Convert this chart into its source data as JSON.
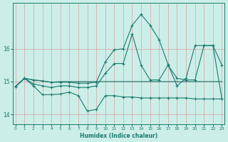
{
  "x": [
    0,
    1,
    2,
    3,
    4,
    5,
    6,
    7,
    8,
    9,
    10,
    11,
    12,
    13,
    14,
    15,
    16,
    17,
    18,
    19,
    20,
    21,
    22,
    23
  ],
  "line1": [
    14.85,
    15.1,
    14.93,
    14.87,
    14.82,
    14.87,
    14.87,
    14.82,
    14.82,
    14.87,
    15.25,
    15.55,
    15.55,
    16.45,
    15.5,
    15.05,
    15.05,
    15.5,
    15.1,
    15.05,
    15.05,
    16.1,
    16.1,
    15.5
  ],
  "line2": [
    14.85,
    15.1,
    14.87,
    14.6,
    14.6,
    14.62,
    14.68,
    14.57,
    14.1,
    14.15,
    14.57,
    14.57,
    14.53,
    14.53,
    14.5,
    14.5,
    14.5,
    14.5,
    14.5,
    14.5,
    14.47,
    14.47,
    14.47,
    14.47
  ],
  "line3": [
    14.85,
    15.1,
    15.05,
    15.02,
    14.98,
    14.98,
    14.98,
    14.95,
    14.95,
    14.98,
    15.6,
    15.97,
    16.0,
    16.72,
    17.05,
    16.72,
    16.28,
    15.52,
    14.87,
    15.1,
    16.1,
    16.1,
    16.1,
    14.47
  ],
  "line4": [
    14.85,
    15.1,
    15.05,
    15.02,
    14.98,
    15.0,
    15.0,
    15.0,
    15.0,
    15.0,
    15.0,
    15.0,
    15.0,
    15.0,
    15.0,
    15.0,
    15.0,
    15.0,
    15.0,
    15.0,
    15.0,
    15.0,
    15.0,
    15.0
  ],
  "bg_color": "#cceee8",
  "line_color": "#1a7a6e",
  "grid_color": "#b0ddd8",
  "xlabel": "Humidex (Indice chaleur)",
  "ylabel_ticks": [
    14,
    15,
    16
  ],
  "xticks": [
    0,
    1,
    2,
    3,
    4,
    5,
    6,
    7,
    8,
    9,
    10,
    11,
    12,
    13,
    14,
    15,
    16,
    17,
    18,
    19,
    20,
    21,
    22,
    23
  ],
  "ylim": [
    13.7,
    17.4
  ],
  "xlim": [
    -0.3,
    23.3
  ]
}
